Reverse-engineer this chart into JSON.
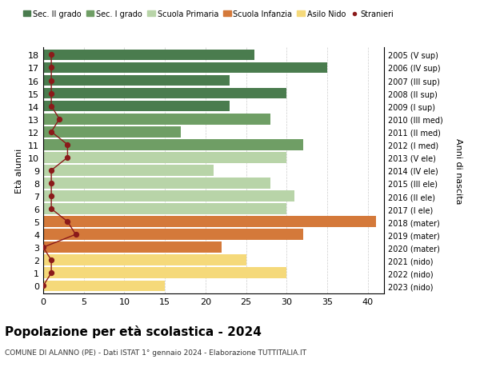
{
  "ages": [
    18,
    17,
    16,
    15,
    14,
    13,
    12,
    11,
    10,
    9,
    8,
    7,
    6,
    5,
    4,
    3,
    2,
    1,
    0
  ],
  "years_labels_by_age": {
    "18": "2005 (V sup)",
    "17": "2006 (IV sup)",
    "16": "2007 (III sup)",
    "15": "2008 (II sup)",
    "14": "2009 (I sup)",
    "13": "2010 (III med)",
    "12": "2011 (II med)",
    "11": "2012 (I med)",
    "10": "2013 (V ele)",
    "9": "2014 (IV ele)",
    "8": "2015 (III ele)",
    "7": "2016 (II ele)",
    "6": "2017 (I ele)",
    "5": "2018 (mater)",
    "4": "2019 (mater)",
    "3": "2020 (mater)",
    "2": "2021 (nido)",
    "1": "2022 (nido)",
    "0": "2023 (nido)"
  },
  "bar_values_by_age": {
    "18": 26,
    "17": 35,
    "16": 23,
    "15": 30,
    "14": 23,
    "13": 28,
    "12": 17,
    "11": 32,
    "10": 30,
    "9": 21,
    "8": 28,
    "7": 31,
    "6": 30,
    "5": 41,
    "4": 32,
    "3": 22,
    "2": 25,
    "1": 30,
    "0": 15
  },
  "bar_colors_by_age": {
    "18": "#4a7c4e",
    "17": "#4a7c4e",
    "16": "#4a7c4e",
    "15": "#4a7c4e",
    "14": "#4a7c4e",
    "13": "#6f9e65",
    "12": "#6f9e65",
    "11": "#6f9e65",
    "10": "#b8d4a8",
    "9": "#b8d4a8",
    "8": "#b8d4a8",
    "7": "#b8d4a8",
    "6": "#b8d4a8",
    "5": "#d4793a",
    "4": "#d4793a",
    "3": "#d4793a",
    "2": "#f5d97a",
    "1": "#f5d97a",
    "0": "#f5d97a"
  },
  "stranieri_by_age": {
    "18": 1,
    "17": 1,
    "16": 1,
    "15": 1,
    "14": 1,
    "13": 2,
    "12": 1,
    "11": 3,
    "10": 3,
    "9": 1,
    "8": 1,
    "7": 1,
    "6": 1,
    "5": 3,
    "4": 4,
    "3": 0,
    "2": 1,
    "1": 1,
    "0": 0
  },
  "legend_labels": [
    "Sec. II grado",
    "Sec. I grado",
    "Scuola Primaria",
    "Scuola Infanzia",
    "Asilo Nido",
    "Stranieri"
  ],
  "legend_colors": [
    "#4a7c4e",
    "#6f9e65",
    "#b8d4a8",
    "#d4793a",
    "#f5d97a",
    "#8b1a1a"
  ],
  "title": "Popolazione per età scolastica - 2024",
  "subtitle": "COMUNE DI ALANNO (PE) - Dati ISTAT 1° gennaio 2024 - Elaborazione TUTTITALIA.IT",
  "ylabel_left": "Età alunni",
  "ylabel_right": "Anni di nascita",
  "xlim": [
    0,
    42
  ],
  "xticks": [
    0,
    5,
    10,
    15,
    20,
    25,
    30,
    35,
    40
  ],
  "grid_color": "#cccccc"
}
